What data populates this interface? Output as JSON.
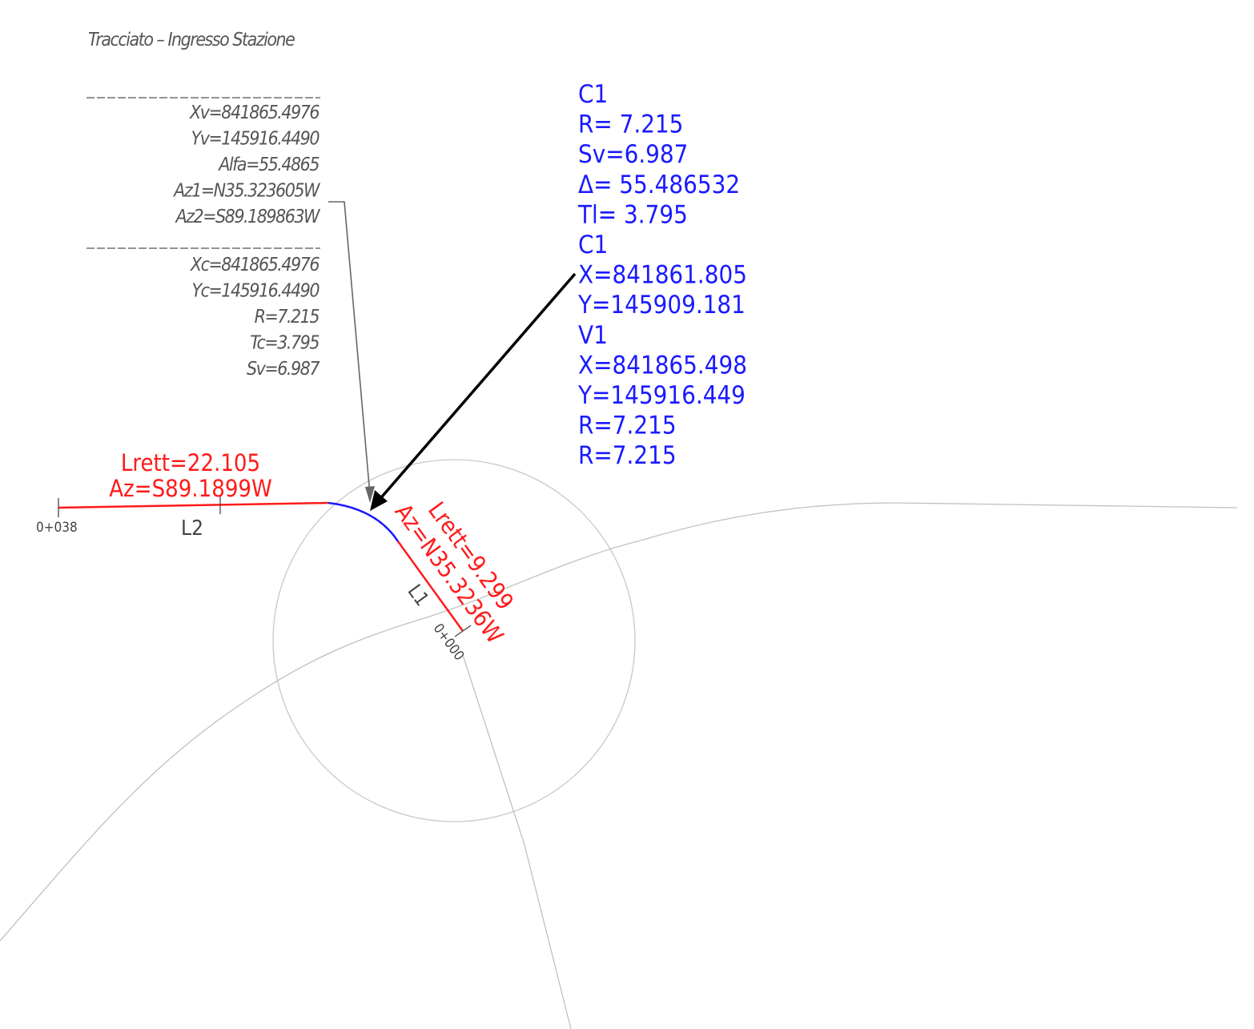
{
  "title": "Tracciato – Ingresso Stazione",
  "vertex_block": [
    "Xv=841865.4976",
    "Yv=145916.4490",
    "Alfa=55.4865",
    "Az1=N35.323605W",
    "Az2=S89.189863W"
  ],
  "center_block": [
    "Xc=841865.4976",
    "Yc=145916.4490",
    "R=7.215",
    "Tc=3.795",
    "Sv=6.987"
  ],
  "curve_block": [
    "C1",
    "R=  7.215",
    "Sv=6.987",
    "Δ=  55.486532",
    "Tl=  3.795",
    "C1",
    "X=841861.805",
    "Y=145909.181",
    "V1",
    "X=841865.498",
    "Y=145916.449",
    "R=7.215",
    "R=7.215"
  ],
  "segments": {
    "l2": {
      "name": "L2",
      "length": "Lrett=22.105",
      "azimuth": "Az=S89.1899W",
      "station": "0+038"
    },
    "l1": {
      "name": "L1",
      "length": "Lrett=9.299",
      "azimuth": "Az=N35.3236W",
      "station": "0+000"
    }
  }
}
